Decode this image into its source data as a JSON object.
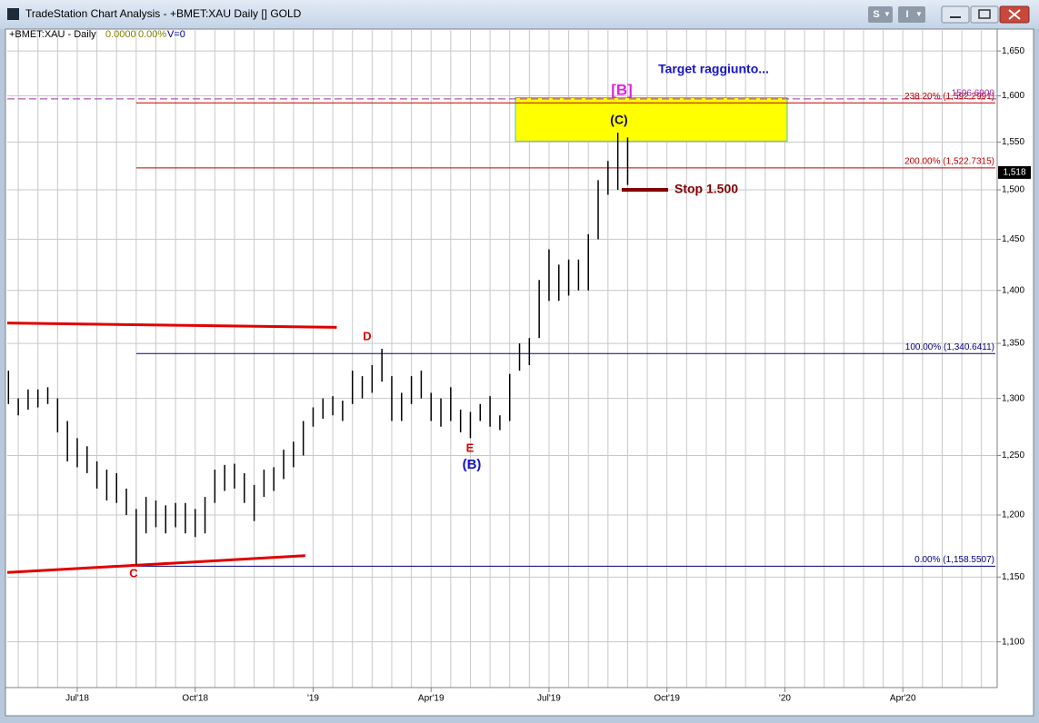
{
  "window": {
    "title": "TradeStation Chart Analysis - +BMET:XAU Daily [] GOLD",
    "buttons": [
      "S",
      "I"
    ]
  },
  "info": {
    "symbol": "+BMET:XAU - Daily",
    "change": "0.0000",
    "change_pct": "0.00%",
    "volume": "V=0"
  },
  "chart_data": {
    "type": "hilo",
    "log": true,
    "color": "#000000",
    "grid_color": "#c8c8c8",
    "x": [
      4.25,
      4.5,
      4.75,
      5.0,
      5.25,
      5.5,
      5.75,
      6.0,
      6.25,
      6.5,
      6.75,
      7.0,
      7.25,
      7.5,
      7.75,
      8.0,
      8.25,
      8.5,
      8.75,
      9.0,
      9.25,
      9.5,
      9.75,
      10.0,
      10.25,
      10.5,
      10.75,
      11.0,
      11.25,
      11.5,
      11.75,
      12.0,
      12.25,
      12.5,
      12.75,
      13.0,
      13.25,
      13.5,
      13.75,
      14.0,
      14.25,
      14.5,
      14.75,
      15.0,
      15.25,
      15.5,
      15.75,
      16.0,
      16.25,
      16.5,
      16.75,
      17.0,
      17.25,
      17.5,
      17.75,
      18.0,
      18.25,
      18.5,
      18.75,
      19.0,
      19.25,
      19.5,
      19.75,
      20.0
    ],
    "high": [
      1325,
      1300,
      1308,
      1308,
      1310,
      1300,
      1280,
      1265,
      1258,
      1245,
      1238,
      1235,
      1222,
      1205,
      1215,
      1212,
      1208,
      1210,
      1210,
      1205,
      1215,
      1238,
      1242,
      1243,
      1235,
      1225,
      1238,
      1240,
      1255,
      1262,
      1280,
      1292,
      1300,
      1302,
      1298,
      1325,
      1320,
      1330,
      1345,
      1320,
      1305,
      1320,
      1325,
      1305,
      1300,
      1310,
      1290,
      1288,
      1295,
      1302,
      1285,
      1322,
      1350,
      1355,
      1410,
      1440,
      1425,
      1430,
      1430,
      1455,
      1510,
      1530,
      1560,
      1555
    ],
    "low": [
      1295,
      1285,
      1290,
      1292,
      1295,
      1270,
      1245,
      1240,
      1235,
      1222,
      1212,
      1210,
      1200,
      1160,
      1185,
      1190,
      1185,
      1190,
      1185,
      1182,
      1185,
      1210,
      1220,
      1222,
      1210,
      1195,
      1215,
      1220,
      1230,
      1240,
      1250,
      1275,
      1282,
      1285,
      1280,
      1295,
      1300,
      1305,
      1315,
      1280,
      1280,
      1295,
      1300,
      1280,
      1275,
      1280,
      1270,
      1265,
      1280,
      1275,
      1272,
      1280,
      1325,
      1330,
      1355,
      1390,
      1390,
      1395,
      1400,
      1400,
      1450,
      1495,
      1500,
      1505
    ],
    "xlim": [
      4.22,
      29.4
    ],
    "ylim": [
      1066,
      1675
    ],
    "xticks": [
      {
        "value": 6,
        "label": "Jul'18"
      },
      {
        "value": 9,
        "label": "Oct'18"
      },
      {
        "value": 12,
        "label": "'19"
      },
      {
        "value": 15,
        "label": "Apr'19"
      },
      {
        "value": 18,
        "label": "Jul'19"
      },
      {
        "value": 21,
        "label": "Oct'19"
      },
      {
        "value": 24,
        "label": "'20"
      },
      {
        "value": 27,
        "label": "Apr'20"
      }
    ],
    "xgrid": [
      4.5,
      5,
      5.5,
      6,
      6.5,
      7,
      7.5,
      8,
      8.5,
      9,
      9.5,
      10,
      10.5,
      11,
      11.5,
      12,
      12.5,
      13,
      13.5,
      14,
      14.5,
      15,
      15.5,
      16,
      16.5,
      17,
      17.5,
      18,
      18.5,
      19,
      19.5,
      20,
      20.5,
      21,
      21.5,
      22,
      22.5,
      23,
      23.5,
      24,
      24.5,
      25,
      25.5,
      26,
      26.5,
      27,
      27.5,
      28,
      28.5,
      29
    ],
    "yticks": [
      {
        "value": 1100,
        "label": "1,100"
      },
      {
        "value": 1150,
        "label": "1,150"
      },
      {
        "value": 1200,
        "label": "1,200"
      },
      {
        "value": 1250,
        "label": "1,250"
      },
      {
        "value": 1300,
        "label": "1,300"
      },
      {
        "value": 1350,
        "label": "1,350"
      },
      {
        "value": 1400,
        "label": "1,400"
      },
      {
        "value": 1450,
        "label": "1,450"
      },
      {
        "value": 1500,
        "label": "1,500"
      },
      {
        "value": 1550,
        "label": "1,550"
      },
      {
        "value": 1600,
        "label": "1,600"
      },
      {
        "value": 1650,
        "label": "1,650"
      }
    ],
    "last": {
      "value": 1518,
      "label": "1,518"
    },
    "levels": [
      {
        "value": 1592.2991,
        "label": "238.20% (1,592.2991)",
        "color": "#c00000"
      },
      {
        "value": 1522.7315,
        "label": "200.00% (1,522.7315)",
        "color": "#c00000"
      },
      {
        "value": 1340.6411,
        "label": "100.00% (1,340.6411)",
        "color": "#000080"
      },
      {
        "value": 1158.5507,
        "label": "0.00% (1,158.5507)",
        "color": "#000080"
      }
    ],
    "target_line": {
      "value": 1596.69,
      "label": "1596.6900",
      "color": "#a030a0"
    },
    "target_zone": {
      "top": 1598,
      "bottom": 1551,
      "color": "#ffff00"
    },
    "stop": 1500,
    "trendlines": [
      {
        "x": [
          4.22,
          12.6
        ],
        "y": [
          1369,
          1365
        ],
        "color": "#e00000"
      },
      {
        "x": [
          4.22,
          11.8
        ],
        "y": [
          1153.6,
          1167
        ],
        "color": "#e00000"
      }
    ],
    "annotations": {
      "target": "Target raggiunto...",
      "wave_b_big": "[B]",
      "wave_c_paren": "(C)",
      "stop": "Stop 1.500",
      "d": "D",
      "e": "E",
      "wave_b_paren": "(B)",
      "c": "C"
    }
  }
}
